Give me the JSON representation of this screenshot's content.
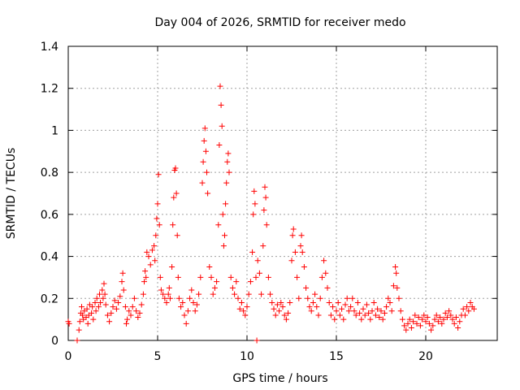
{
  "chart_data": {
    "type": "scatter",
    "title": "Day 004 of 2026, SRMTID for receiver medo",
    "xlabel": "GPS time / hours",
    "ylabel": "SRMTID / TECUs",
    "xlim": [
      0,
      24
    ],
    "ylim": [
      0,
      1.4
    ],
    "x_ticks": [
      0,
      5,
      10,
      15,
      20
    ],
    "x_tick_labels": [
      "0",
      "5",
      "10",
      "15",
      "20"
    ],
    "y_ticks": [
      0,
      0.2,
      0.4,
      0.6,
      0.8,
      1.0,
      1.2,
      1.4
    ],
    "y_tick_labels": [
      "0",
      "0.2",
      "0.4",
      "0.6",
      "0.8",
      "1",
      "1.2",
      "1.4"
    ],
    "grid": true,
    "marker": "plus",
    "color": "#ff0000",
    "series": [
      {
        "name": "SRMTID",
        "points": [
          [
            0.0,
            0.09
          ],
          [
            0.05,
            0.08
          ],
          [
            0.5,
            0.0
          ],
          [
            0.6,
            0.05
          ],
          [
            0.65,
            0.09
          ],
          [
            0.7,
            0.13
          ],
          [
            0.75,
            0.16
          ],
          [
            0.8,
            0.12
          ],
          [
            0.85,
            0.1
          ],
          [
            0.9,
            0.14
          ],
          [
            1.0,
            0.11
          ],
          [
            1.05,
            0.15
          ],
          [
            1.1,
            0.08
          ],
          [
            1.15,
            0.12
          ],
          [
            1.2,
            0.17
          ],
          [
            1.3,
            0.13
          ],
          [
            1.35,
            0.16
          ],
          [
            1.4,
            0.1
          ],
          [
            1.5,
            0.18
          ],
          [
            1.55,
            0.14
          ],
          [
            1.6,
            0.2
          ],
          [
            1.7,
            0.16
          ],
          [
            1.75,
            0.22
          ],
          [
            1.8,
            0.18
          ],
          [
            1.9,
            0.24
          ],
          [
            1.95,
            0.2
          ],
          [
            2.0,
            0.27
          ],
          [
            2.05,
            0.22
          ],
          [
            2.1,
            0.17
          ],
          [
            2.2,
            0.12
          ],
          [
            2.3,
            0.09
          ],
          [
            2.4,
            0.13
          ],
          [
            2.5,
            0.16
          ],
          [
            2.6,
            0.19
          ],
          [
            2.7,
            0.15
          ],
          [
            2.8,
            0.18
          ],
          [
            2.9,
            0.21
          ],
          [
            3.0,
            0.28
          ],
          [
            3.05,
            0.32
          ],
          [
            3.1,
            0.24
          ],
          [
            3.2,
            0.16
          ],
          [
            3.25,
            0.08
          ],
          [
            3.3,
            0.1
          ],
          [
            3.4,
            0.14
          ],
          [
            3.5,
            0.12
          ],
          [
            3.6,
            0.16
          ],
          [
            3.7,
            0.2
          ],
          [
            3.8,
            0.14
          ],
          [
            3.9,
            0.11
          ],
          [
            4.0,
            0.13
          ],
          [
            4.1,
            0.17
          ],
          [
            4.2,
            0.22
          ],
          [
            4.25,
            0.28
          ],
          [
            4.3,
            0.33
          ],
          [
            4.35,
            0.3
          ],
          [
            4.4,
            0.42
          ],
          [
            4.5,
            0.4
          ],
          [
            4.6,
            0.36
          ],
          [
            4.7,
            0.43
          ],
          [
            4.8,
            0.45
          ],
          [
            4.85,
            0.38
          ],
          [
            4.9,
            0.5
          ],
          [
            4.95,
            0.58
          ],
          [
            5.0,
            0.65
          ],
          [
            5.05,
            0.79
          ],
          [
            5.1,
            0.55
          ],
          [
            5.15,
            0.3
          ],
          [
            5.2,
            0.24
          ],
          [
            5.3,
            0.22
          ],
          [
            5.4,
            0.2
          ],
          [
            5.5,
            0.18
          ],
          [
            5.6,
            0.22
          ],
          [
            5.65,
            0.25
          ],
          [
            5.7,
            0.2
          ],
          [
            5.8,
            0.35
          ],
          [
            5.85,
            0.55
          ],
          [
            5.9,
            0.68
          ],
          [
            5.95,
            0.81
          ],
          [
            6.0,
            0.82
          ],
          [
            6.05,
            0.7
          ],
          [
            6.1,
            0.5
          ],
          [
            6.15,
            0.3
          ],
          [
            6.2,
            0.2
          ],
          [
            6.3,
            0.16
          ],
          [
            6.4,
            0.18
          ],
          [
            6.5,
            0.12
          ],
          [
            6.6,
            0.08
          ],
          [
            6.7,
            0.14
          ],
          [
            6.8,
            0.2
          ],
          [
            6.9,
            0.24
          ],
          [
            7.0,
            0.18
          ],
          [
            7.1,
            0.14
          ],
          [
            7.2,
            0.17
          ],
          [
            7.3,
            0.22
          ],
          [
            7.4,
            0.3
          ],
          [
            7.5,
            0.75
          ],
          [
            7.55,
            0.85
          ],
          [
            7.6,
            0.95
          ],
          [
            7.65,
            1.01
          ],
          [
            7.7,
            0.9
          ],
          [
            7.75,
            0.8
          ],
          [
            7.8,
            0.7
          ],
          [
            7.9,
            0.35
          ],
          [
            8.0,
            0.3
          ],
          [
            8.1,
            0.22
          ],
          [
            8.2,
            0.25
          ],
          [
            8.3,
            0.28
          ],
          [
            8.4,
            0.55
          ],
          [
            8.45,
            0.93
          ],
          [
            8.5,
            1.21
          ],
          [
            8.55,
            1.12
          ],
          [
            8.6,
            1.02
          ],
          [
            8.65,
            0.6
          ],
          [
            8.7,
            0.45
          ],
          [
            8.75,
            0.5
          ],
          [
            8.8,
            0.65
          ],
          [
            8.85,
            0.75
          ],
          [
            8.9,
            0.85
          ],
          [
            8.95,
            0.89
          ],
          [
            9.0,
            0.8
          ],
          [
            9.1,
            0.3
          ],
          [
            9.2,
            0.25
          ],
          [
            9.3,
            0.22
          ],
          [
            9.4,
            0.28
          ],
          [
            9.5,
            0.2
          ],
          [
            9.6,
            0.15
          ],
          [
            9.7,
            0.18
          ],
          [
            9.8,
            0.14
          ],
          [
            9.9,
            0.12
          ],
          [
            10.0,
            0.16
          ],
          [
            10.1,
            0.22
          ],
          [
            10.2,
            0.28
          ],
          [
            10.3,
            0.42
          ],
          [
            10.35,
            0.6
          ],
          [
            10.4,
            0.71
          ],
          [
            10.45,
            0.65
          ],
          [
            10.5,
            0.3
          ],
          [
            10.55,
            0.0
          ],
          [
            10.6,
            0.38
          ],
          [
            10.7,
            0.32
          ],
          [
            10.8,
            0.22
          ],
          [
            10.9,
            0.45
          ],
          [
            10.95,
            0.62
          ],
          [
            11.0,
            0.73
          ],
          [
            11.05,
            0.68
          ],
          [
            11.1,
            0.55
          ],
          [
            11.2,
            0.3
          ],
          [
            11.3,
            0.22
          ],
          [
            11.4,
            0.18
          ],
          [
            11.5,
            0.15
          ],
          [
            11.6,
            0.12
          ],
          [
            11.7,
            0.17
          ],
          [
            11.8,
            0.14
          ],
          [
            11.9,
            0.18
          ],
          [
            12.0,
            0.16
          ],
          [
            12.1,
            0.12
          ],
          [
            12.2,
            0.1
          ],
          [
            12.3,
            0.13
          ],
          [
            12.4,
            0.18
          ],
          [
            12.5,
            0.38
          ],
          [
            12.55,
            0.5
          ],
          [
            12.6,
            0.53
          ],
          [
            12.7,
            0.42
          ],
          [
            12.8,
            0.3
          ],
          [
            12.9,
            0.2
          ],
          [
            13.0,
            0.45
          ],
          [
            13.05,
            0.5
          ],
          [
            13.1,
            0.42
          ],
          [
            13.2,
            0.35
          ],
          [
            13.3,
            0.25
          ],
          [
            13.4,
            0.2
          ],
          [
            13.5,
            0.16
          ],
          [
            13.6,
            0.14
          ],
          [
            13.7,
            0.18
          ],
          [
            13.8,
            0.22
          ],
          [
            13.9,
            0.16
          ],
          [
            14.0,
            0.12
          ],
          [
            14.1,
            0.2
          ],
          [
            14.2,
            0.3
          ],
          [
            14.3,
            0.38
          ],
          [
            14.4,
            0.32
          ],
          [
            14.5,
            0.25
          ],
          [
            14.6,
            0.18
          ],
          [
            14.7,
            0.12
          ],
          [
            14.8,
            0.16
          ],
          [
            14.9,
            0.1
          ],
          [
            15.0,
            0.14
          ],
          [
            15.1,
            0.18
          ],
          [
            15.2,
            0.12
          ],
          [
            15.3,
            0.15
          ],
          [
            15.4,
            0.1
          ],
          [
            15.5,
            0.17
          ],
          [
            15.6,
            0.2
          ],
          [
            15.7,
            0.14
          ],
          [
            15.8,
            0.16
          ],
          [
            15.9,
            0.2
          ],
          [
            16.0,
            0.14
          ],
          [
            16.1,
            0.12
          ],
          [
            16.2,
            0.18
          ],
          [
            16.3,
            0.13
          ],
          [
            16.4,
            0.1
          ],
          [
            16.5,
            0.15
          ],
          [
            16.6,
            0.12
          ],
          [
            16.7,
            0.17
          ],
          [
            16.8,
            0.13
          ],
          [
            16.9,
            0.1
          ],
          [
            17.0,
            0.14
          ],
          [
            17.1,
            0.18
          ],
          [
            17.2,
            0.12
          ],
          [
            17.3,
            0.15
          ],
          [
            17.4,
            0.11
          ],
          [
            17.5,
            0.14
          ],
          [
            17.6,
            0.1
          ],
          [
            17.7,
            0.13
          ],
          [
            17.8,
            0.16
          ],
          [
            17.9,
            0.2
          ],
          [
            18.0,
            0.18
          ],
          [
            18.1,
            0.14
          ],
          [
            18.2,
            0.26
          ],
          [
            18.3,
            0.35
          ],
          [
            18.35,
            0.32
          ],
          [
            18.4,
            0.25
          ],
          [
            18.5,
            0.2
          ],
          [
            18.6,
            0.14
          ],
          [
            18.7,
            0.1
          ],
          [
            18.8,
            0.07
          ],
          [
            18.9,
            0.05
          ],
          [
            19.0,
            0.08
          ],
          [
            19.1,
            0.1
          ],
          [
            19.2,
            0.06
          ],
          [
            19.3,
            0.09
          ],
          [
            19.4,
            0.12
          ],
          [
            19.5,
            0.08
          ],
          [
            19.6,
            0.11
          ],
          [
            19.7,
            0.07
          ],
          [
            19.8,
            0.1
          ],
          [
            19.9,
            0.12
          ],
          [
            20.0,
            0.09
          ],
          [
            20.1,
            0.11
          ],
          [
            20.2,
            0.08
          ],
          [
            20.3,
            0.05
          ],
          [
            20.4,
            0.07
          ],
          [
            20.5,
            0.1
          ],
          [
            20.6,
            0.12
          ],
          [
            20.7,
            0.09
          ],
          [
            20.8,
            0.11
          ],
          [
            20.9,
            0.08
          ],
          [
            21.0,
            0.1
          ],
          [
            21.1,
            0.13
          ],
          [
            21.2,
            0.11
          ],
          [
            21.3,
            0.14
          ],
          [
            21.4,
            0.12
          ],
          [
            21.5,
            0.1
          ],
          [
            21.6,
            0.08
          ],
          [
            21.7,
            0.11
          ],
          [
            21.8,
            0.06
          ],
          [
            21.9,
            0.09
          ],
          [
            22.0,
            0.12
          ],
          [
            22.1,
            0.15
          ],
          [
            22.2,
            0.12
          ],
          [
            22.3,
            0.16
          ],
          [
            22.4,
            0.14
          ],
          [
            22.5,
            0.18
          ],
          [
            22.6,
            0.16
          ],
          [
            22.7,
            0.15
          ]
        ]
      }
    ]
  }
}
